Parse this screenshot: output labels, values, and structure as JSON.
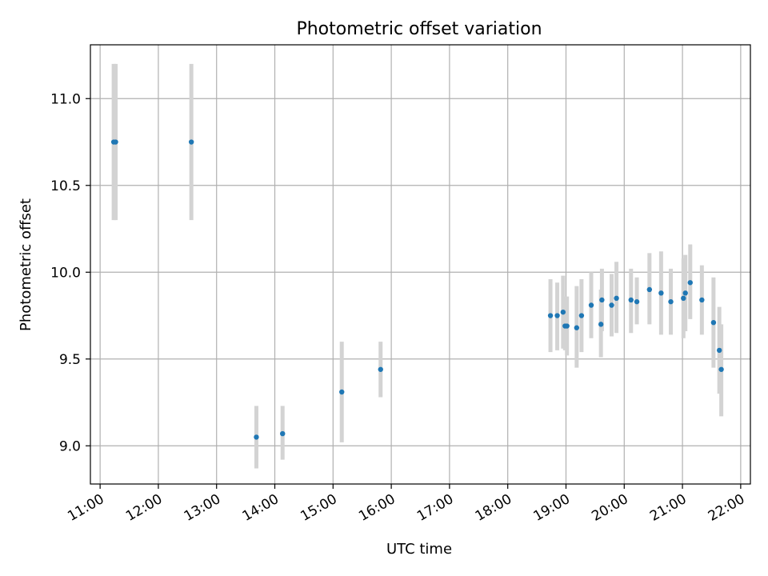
{
  "chart_data": {
    "type": "scatter",
    "title": "Photometric offset variation",
    "xlabel": "UTC time",
    "ylabel": "Photometric offset",
    "xlim": [
      "10:50",
      "22:10"
    ],
    "ylim": [
      8.78,
      11.31
    ],
    "grid": true,
    "x_ticks": [
      "11:00",
      "12:00",
      "13:00",
      "14:00",
      "15:00",
      "16:00",
      "17:00",
      "18:00",
      "19:00",
      "20:00",
      "21:00",
      "22:00"
    ],
    "y_ticks": [
      "9.0",
      "9.5",
      "10.0",
      "10.5",
      "11.0"
    ],
    "colors": {
      "point": "#1f77b4",
      "errorbar": "#d3d3d3",
      "grid": "#b0b0b0"
    },
    "points": [
      {
        "x": "11:14",
        "y": 10.75,
        "low": 10.3,
        "high": 11.2
      },
      {
        "x": "11:16",
        "y": 10.75,
        "low": 10.3,
        "high": 11.2
      },
      {
        "x": "12:34",
        "y": 10.75,
        "low": 10.3,
        "high": 11.2
      },
      {
        "x": "13:41",
        "y": 9.05,
        "low": 8.87,
        "high": 9.23
      },
      {
        "x": "14:08",
        "y": 9.07,
        "low": 8.92,
        "high": 9.23
      },
      {
        "x": "15:09",
        "y": 9.31,
        "low": 9.02,
        "high": 9.6
      },
      {
        "x": "15:49",
        "y": 9.44,
        "low": 9.28,
        "high": 9.6
      },
      {
        "x": "18:44",
        "y": 9.75,
        "low": 9.54,
        "high": 9.96
      },
      {
        "x": "18:51",
        "y": 9.75,
        "low": 9.55,
        "high": 9.94
      },
      {
        "x": "18:57",
        "y": 9.77,
        "low": 9.56,
        "high": 9.98
      },
      {
        "x": "18:59",
        "y": 9.69,
        "low": 9.55,
        "high": 9.86
      },
      {
        "x": "19:01",
        "y": 9.69,
        "low": 9.52,
        "high": 9.86
      },
      {
        "x": "19:11",
        "y": 9.68,
        "low": 9.45,
        "high": 9.92
      },
      {
        "x": "19:16",
        "y": 9.75,
        "low": 9.54,
        "high": 9.96
      },
      {
        "x": "19:26",
        "y": 9.81,
        "low": 9.62,
        "high": 10.0
      },
      {
        "x": "19:36",
        "y": 9.7,
        "low": 9.51,
        "high": 9.9
      },
      {
        "x": "19:37",
        "y": 9.84,
        "low": 9.66,
        "high": 10.02
      },
      {
        "x": "19:47",
        "y": 9.81,
        "low": 9.63,
        "high": 9.99
      },
      {
        "x": "19:52",
        "y": 9.85,
        "low": 9.65,
        "high": 10.06
      },
      {
        "x": "20:07",
        "y": 9.84,
        "low": 9.65,
        "high": 10.02
      },
      {
        "x": "20:13",
        "y": 9.83,
        "low": 9.7,
        "high": 9.97
      },
      {
        "x": "20:26",
        "y": 9.9,
        "low": 9.7,
        "high": 10.11
      },
      {
        "x": "20:38",
        "y": 9.88,
        "low": 9.64,
        "high": 10.12
      },
      {
        "x": "20:48",
        "y": 9.83,
        "low": 9.64,
        "high": 10.02
      },
      {
        "x": "21:01",
        "y": 9.85,
        "low": 9.62,
        "high": 10.08
      },
      {
        "x": "21:03",
        "y": 9.88,
        "low": 9.66,
        "high": 10.1
      },
      {
        "x": "21:08",
        "y": 9.94,
        "low": 9.73,
        "high": 10.16
      },
      {
        "x": "21:20",
        "y": 9.84,
        "low": 9.64,
        "high": 10.04
      },
      {
        "x": "21:32",
        "y": 9.71,
        "low": 9.45,
        "high": 9.97
      },
      {
        "x": "21:38",
        "y": 9.55,
        "low": 9.3,
        "high": 9.8
      },
      {
        "x": "21:40",
        "y": 9.44,
        "low": 9.17,
        "high": 9.7
      }
    ]
  }
}
